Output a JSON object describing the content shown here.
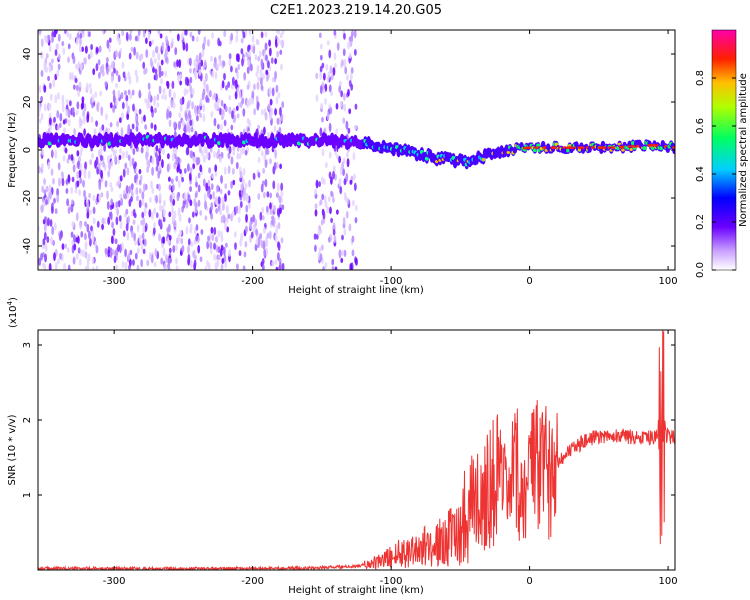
{
  "title": "C2E1.2023.219.14.20.G05",
  "chart_data": [
    {
      "type": "heatmap",
      "xlabel": "Height of straight line (km)",
      "ylabel": "Frequency (Hz)",
      "xlim": [
        -355,
        105
      ],
      "ylim": [
        -50,
        50
      ],
      "xticks": [
        -300,
        -200,
        -100,
        0,
        100
      ],
      "yticks": [
        -40,
        -20,
        0,
        20,
        40
      ],
      "colorbar": {
        "label": "Normalized spectral amplitude",
        "range": [
          0,
          1
        ],
        "ticks": [
          0.0,
          0.2,
          0.4,
          0.6,
          0.8
        ]
      },
      "ridge": [
        {
          "x": -355,
          "y": 4
        },
        {
          "x": -300,
          "y": 4
        },
        {
          "x": -250,
          "y": 4
        },
        {
          "x": -200,
          "y": 4
        },
        {
          "x": -150,
          "y": 4
        },
        {
          "x": -120,
          "y": 3
        },
        {
          "x": -100,
          "y": 1
        },
        {
          "x": -80,
          "y": -2
        },
        {
          "x": -60,
          "y": -4
        },
        {
          "x": -45,
          "y": -5
        },
        {
          "x": -30,
          "y": -2
        },
        {
          "x": -15,
          "y": 0
        },
        {
          "x": 0,
          "y": 1
        },
        {
          "x": 30,
          "y": 1
        },
        {
          "x": 60,
          "y": 1
        },
        {
          "x": 90,
          "y": 2
        },
        {
          "x": 105,
          "y": 1
        }
      ],
      "noise_x_ranges": [
        [
          -355,
          -178
        ],
        [
          -155,
          -125
        ]
      ]
    },
    {
      "type": "line",
      "xlabel": "Height of straight line (km)",
      "ylabel": "SNR (10 * v/v)",
      "y_multiplier": "(x10",
      "y_multiplier_exp": "4",
      "y_multiplier_close": ")",
      "xlim": [
        -355,
        105
      ],
      "ylim": [
        0,
        3.2
      ],
      "xticks": [
        -300,
        -200,
        -100,
        0,
        100
      ],
      "yticks": [
        1,
        2,
        3
      ],
      "color": "#ee3333",
      "series": [
        {
          "x": [
            -355,
            -300,
            -250,
            -200,
            -150,
            -125,
            -110,
            -100,
            -90,
            -80,
            -70,
            -60,
            -50,
            -45,
            -40,
            -35,
            -30,
            -25,
            -20,
            -15,
            -10,
            -5,
            0,
            10,
            20,
            30,
            40,
            50,
            60,
            70,
            80,
            90,
            95,
            97,
            100,
            105
          ],
          "y": [
            0.02,
            0.02,
            0.02,
            0.02,
            0.03,
            0.05,
            0.1,
            0.18,
            0.25,
            0.3,
            0.32,
            0.4,
            0.55,
            0.85,
            0.9,
            0.95,
            1.1,
            1.3,
            1.05,
            0.95,
            1.3,
            1.05,
            1.25,
            1.35,
            1.45,
            1.6,
            1.72,
            1.78,
            1.8,
            1.78,
            1.77,
            1.76,
            1.8,
            1.8,
            1.78,
            1.77
          ]
        }
      ]
    }
  ]
}
